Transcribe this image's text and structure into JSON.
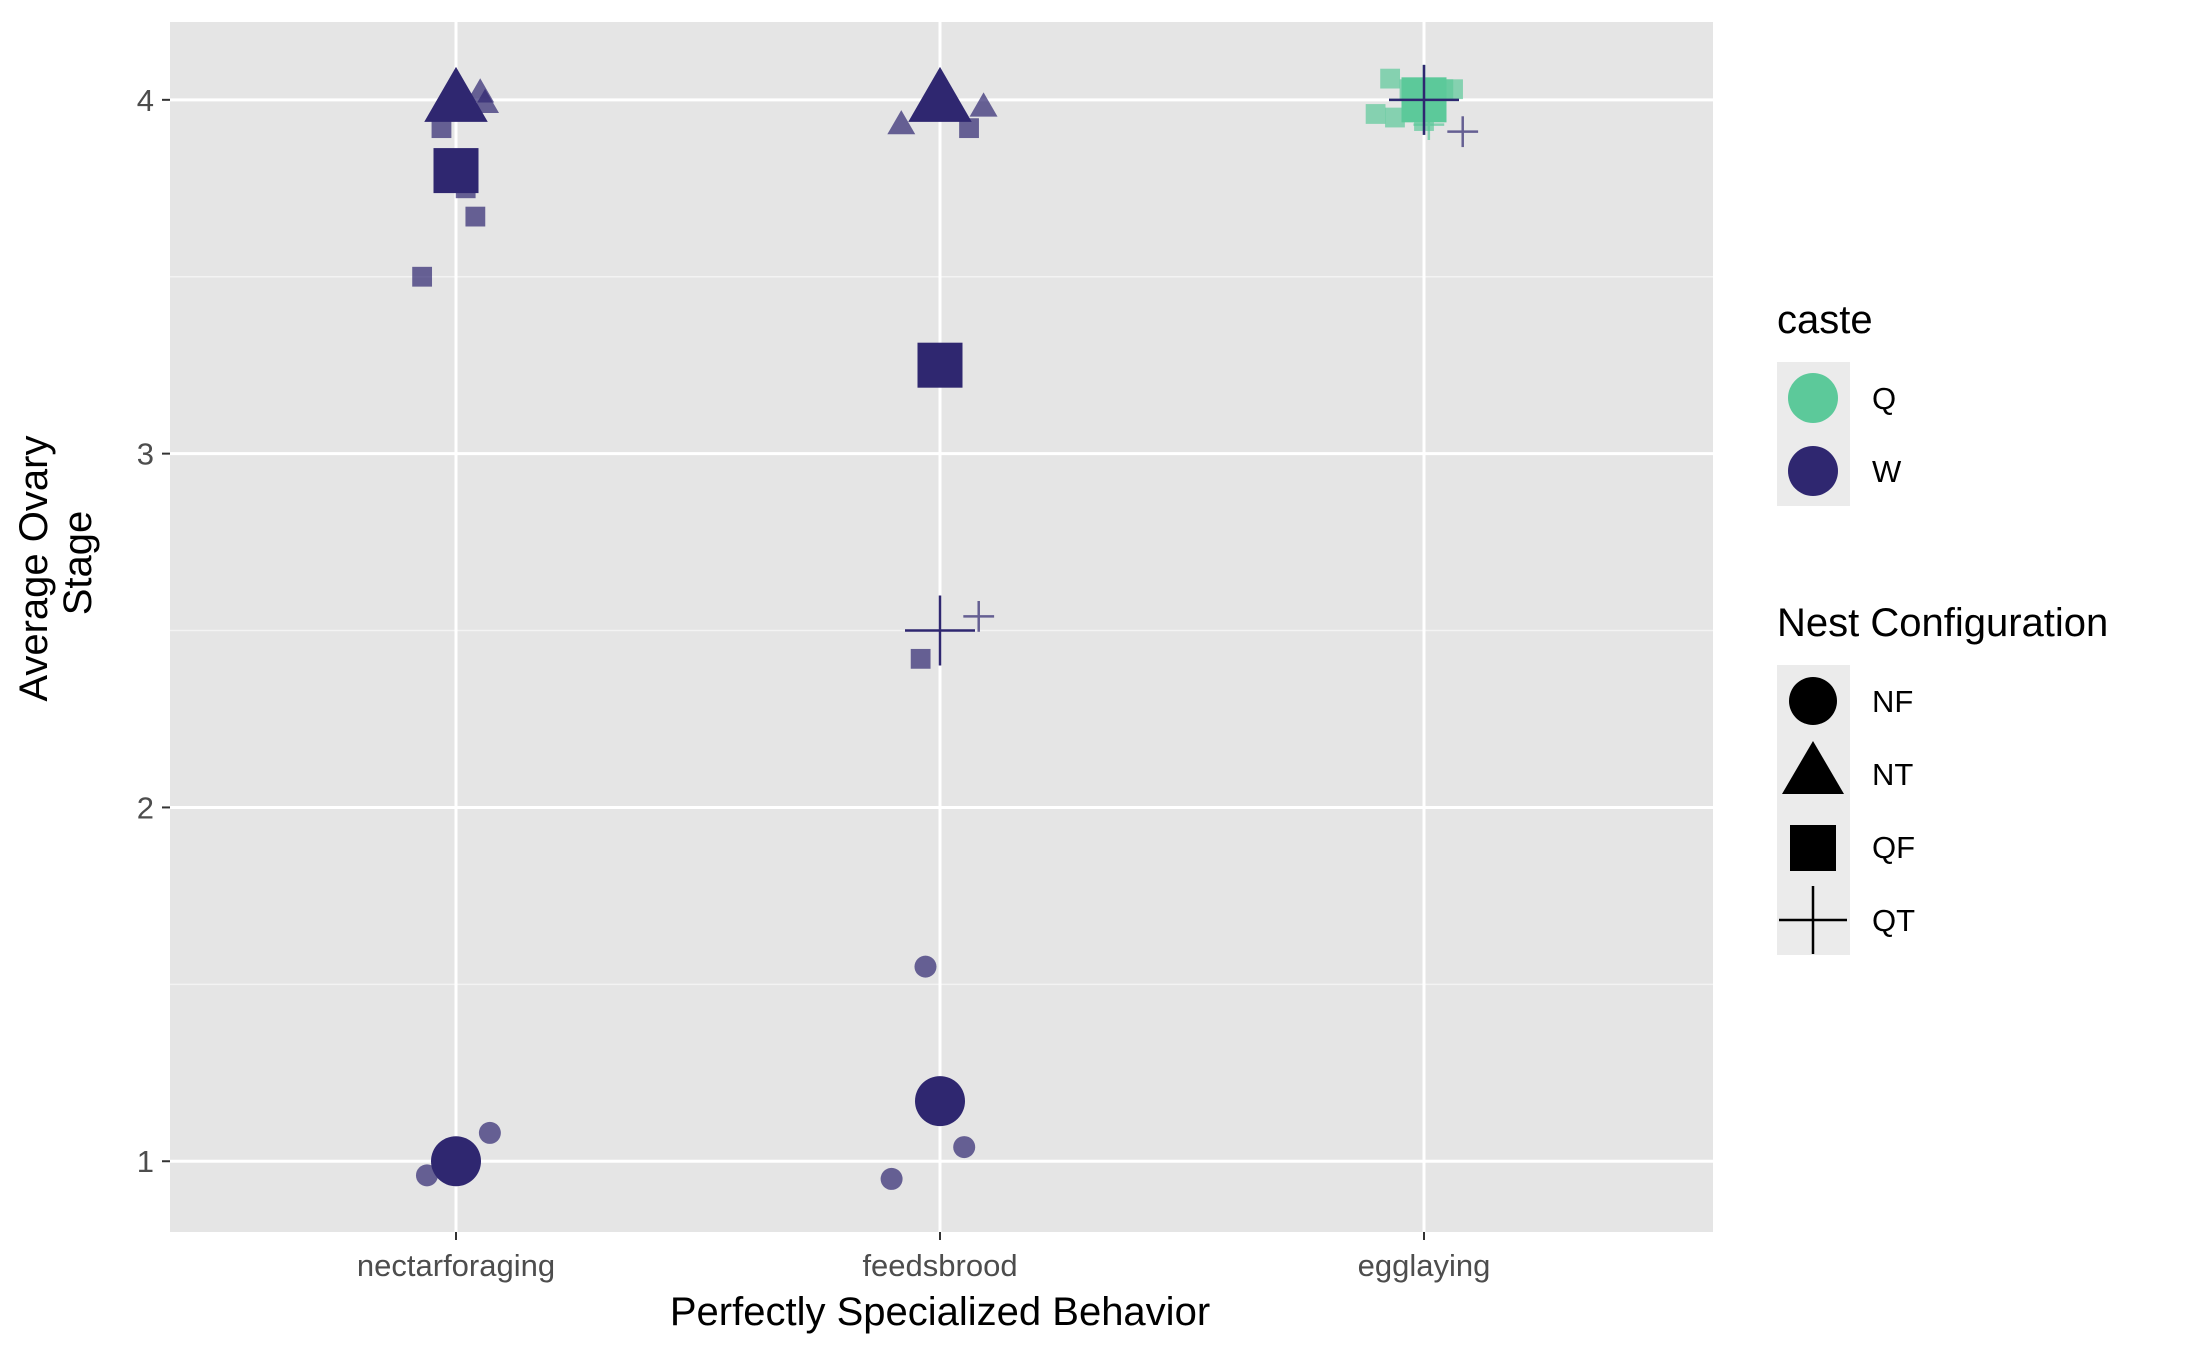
{
  "chart_data": {
    "type": "scatter",
    "xlabel": "Perfectly Specialized Behavior",
    "ylabel_lines": [
      "Average Ovary",
      "Stage"
    ],
    "categories": [
      "nectarforaging",
      "feedsbrood",
      "egglaying"
    ],
    "yticks": [
      1,
      2,
      3,
      4
    ],
    "ylim": [
      0.8,
      4.22
    ],
    "grid": true,
    "legend_position": "right",
    "caste_colors": {
      "Q": "#5cc99a",
      "W": "#2f2770"
    },
    "legends": {
      "caste": {
        "title": "caste",
        "items": [
          "Q",
          "W"
        ]
      },
      "nest": {
        "title": "Nest Configuration",
        "items": [
          "NF",
          "NT",
          "QF",
          "QT"
        ]
      }
    },
    "means": [
      {
        "x": "nectarforaging",
        "caste": "W",
        "nest": "NF",
        "y": 1.0
      },
      {
        "x": "nectarforaging",
        "caste": "W",
        "nest": "NT",
        "y": 4.0
      },
      {
        "x": "nectarforaging",
        "caste": "W",
        "nest": "QF",
        "y": 3.8
      },
      {
        "x": "feedsbrood",
        "caste": "W",
        "nest": "NF",
        "y": 1.17
      },
      {
        "x": "feedsbrood",
        "caste": "W",
        "nest": "NT",
        "y": 4.0
      },
      {
        "x": "feedsbrood",
        "caste": "W",
        "nest": "QF",
        "y": 3.25
      },
      {
        "x": "feedsbrood",
        "caste": "W",
        "nest": "QT",
        "y": 2.5
      },
      {
        "x": "egglaying",
        "caste": "Q",
        "nest": "QF",
        "y": 4.0
      },
      {
        "x": "egglaying",
        "caste": "Q",
        "nest": "QT",
        "y": 4.0
      },
      {
        "x": "egglaying",
        "caste": "W",
        "nest": "QT",
        "y": 4.0
      }
    ],
    "points": [
      {
        "x": "nectarforaging",
        "caste": "W",
        "nest": "NF",
        "jitter": -0.06,
        "y": 0.96
      },
      {
        "x": "nectarforaging",
        "caste": "W",
        "nest": "NF",
        "jitter": 0.07,
        "y": 1.08
      },
      {
        "x": "nectarforaging",
        "caste": "W",
        "nest": "NT",
        "jitter": 0.05,
        "y": 4.02
      },
      {
        "x": "nectarforaging",
        "caste": "W",
        "nest": "NT",
        "jitter": 0.06,
        "y": 3.99
      },
      {
        "x": "nectarforaging",
        "caste": "W",
        "nest": "QF",
        "jitter": -0.03,
        "y": 3.92
      },
      {
        "x": "nectarforaging",
        "caste": "W",
        "nest": "QF",
        "jitter": 0.02,
        "y": 3.75
      },
      {
        "x": "nectarforaging",
        "caste": "W",
        "nest": "QF",
        "jitter": 0.04,
        "y": 3.67
      },
      {
        "x": "nectarforaging",
        "caste": "W",
        "nest": "QF",
        "jitter": -0.07,
        "y": 3.5
      },
      {
        "x": "feedsbrood",
        "caste": "W",
        "nest": "NF",
        "jitter": -0.03,
        "y": 1.55
      },
      {
        "x": "feedsbrood",
        "caste": "W",
        "nest": "NF",
        "jitter": 0.05,
        "y": 1.04
      },
      {
        "x": "feedsbrood",
        "caste": "W",
        "nest": "NF",
        "jitter": -0.1,
        "y": 0.95
      },
      {
        "x": "feedsbrood",
        "caste": "W",
        "nest": "NT",
        "jitter": -0.08,
        "y": 3.93
      },
      {
        "x": "feedsbrood",
        "caste": "W",
        "nest": "NT",
        "jitter": 0.09,
        "y": 3.98
      },
      {
        "x": "feedsbrood",
        "caste": "W",
        "nest": "QF",
        "jitter": 0.06,
        "y": 3.92
      },
      {
        "x": "feedsbrood",
        "caste": "W",
        "nest": "QF",
        "jitter": -0.04,
        "y": 2.42
      },
      {
        "x": "feedsbrood",
        "caste": "W",
        "nest": "QT",
        "jitter": 0.08,
        "y": 2.54
      },
      {
        "x": "egglaying",
        "caste": "Q",
        "nest": "QF",
        "jitter": -0.07,
        "y": 4.06
      },
      {
        "x": "egglaying",
        "caste": "Q",
        "nest": "QF",
        "jitter": -0.1,
        "y": 3.96
      },
      {
        "x": "egglaying",
        "caste": "Q",
        "nest": "QF",
        "jitter": -0.06,
        "y": 3.95
      },
      {
        "x": "egglaying",
        "caste": "Q",
        "nest": "QF",
        "jitter": -0.03,
        "y": 4.03
      },
      {
        "x": "egglaying",
        "caste": "Q",
        "nest": "QF",
        "jitter": 0.02,
        "y": 3.97
      },
      {
        "x": "egglaying",
        "caste": "Q",
        "nest": "QF",
        "jitter": 0.04,
        "y": 4.03
      },
      {
        "x": "egglaying",
        "caste": "Q",
        "nest": "QF",
        "jitter": 0.06,
        "y": 4.03
      },
      {
        "x": "egglaying",
        "caste": "Q",
        "nest": "QF",
        "jitter": 0.0,
        "y": 3.94
      },
      {
        "x": "egglaying",
        "caste": "Q",
        "nest": "QT",
        "jitter": 0.01,
        "y": 3.93
      },
      {
        "x": "egglaying",
        "caste": "W",
        "nest": "QT",
        "jitter": 0.08,
        "y": 3.91
      }
    ]
  }
}
